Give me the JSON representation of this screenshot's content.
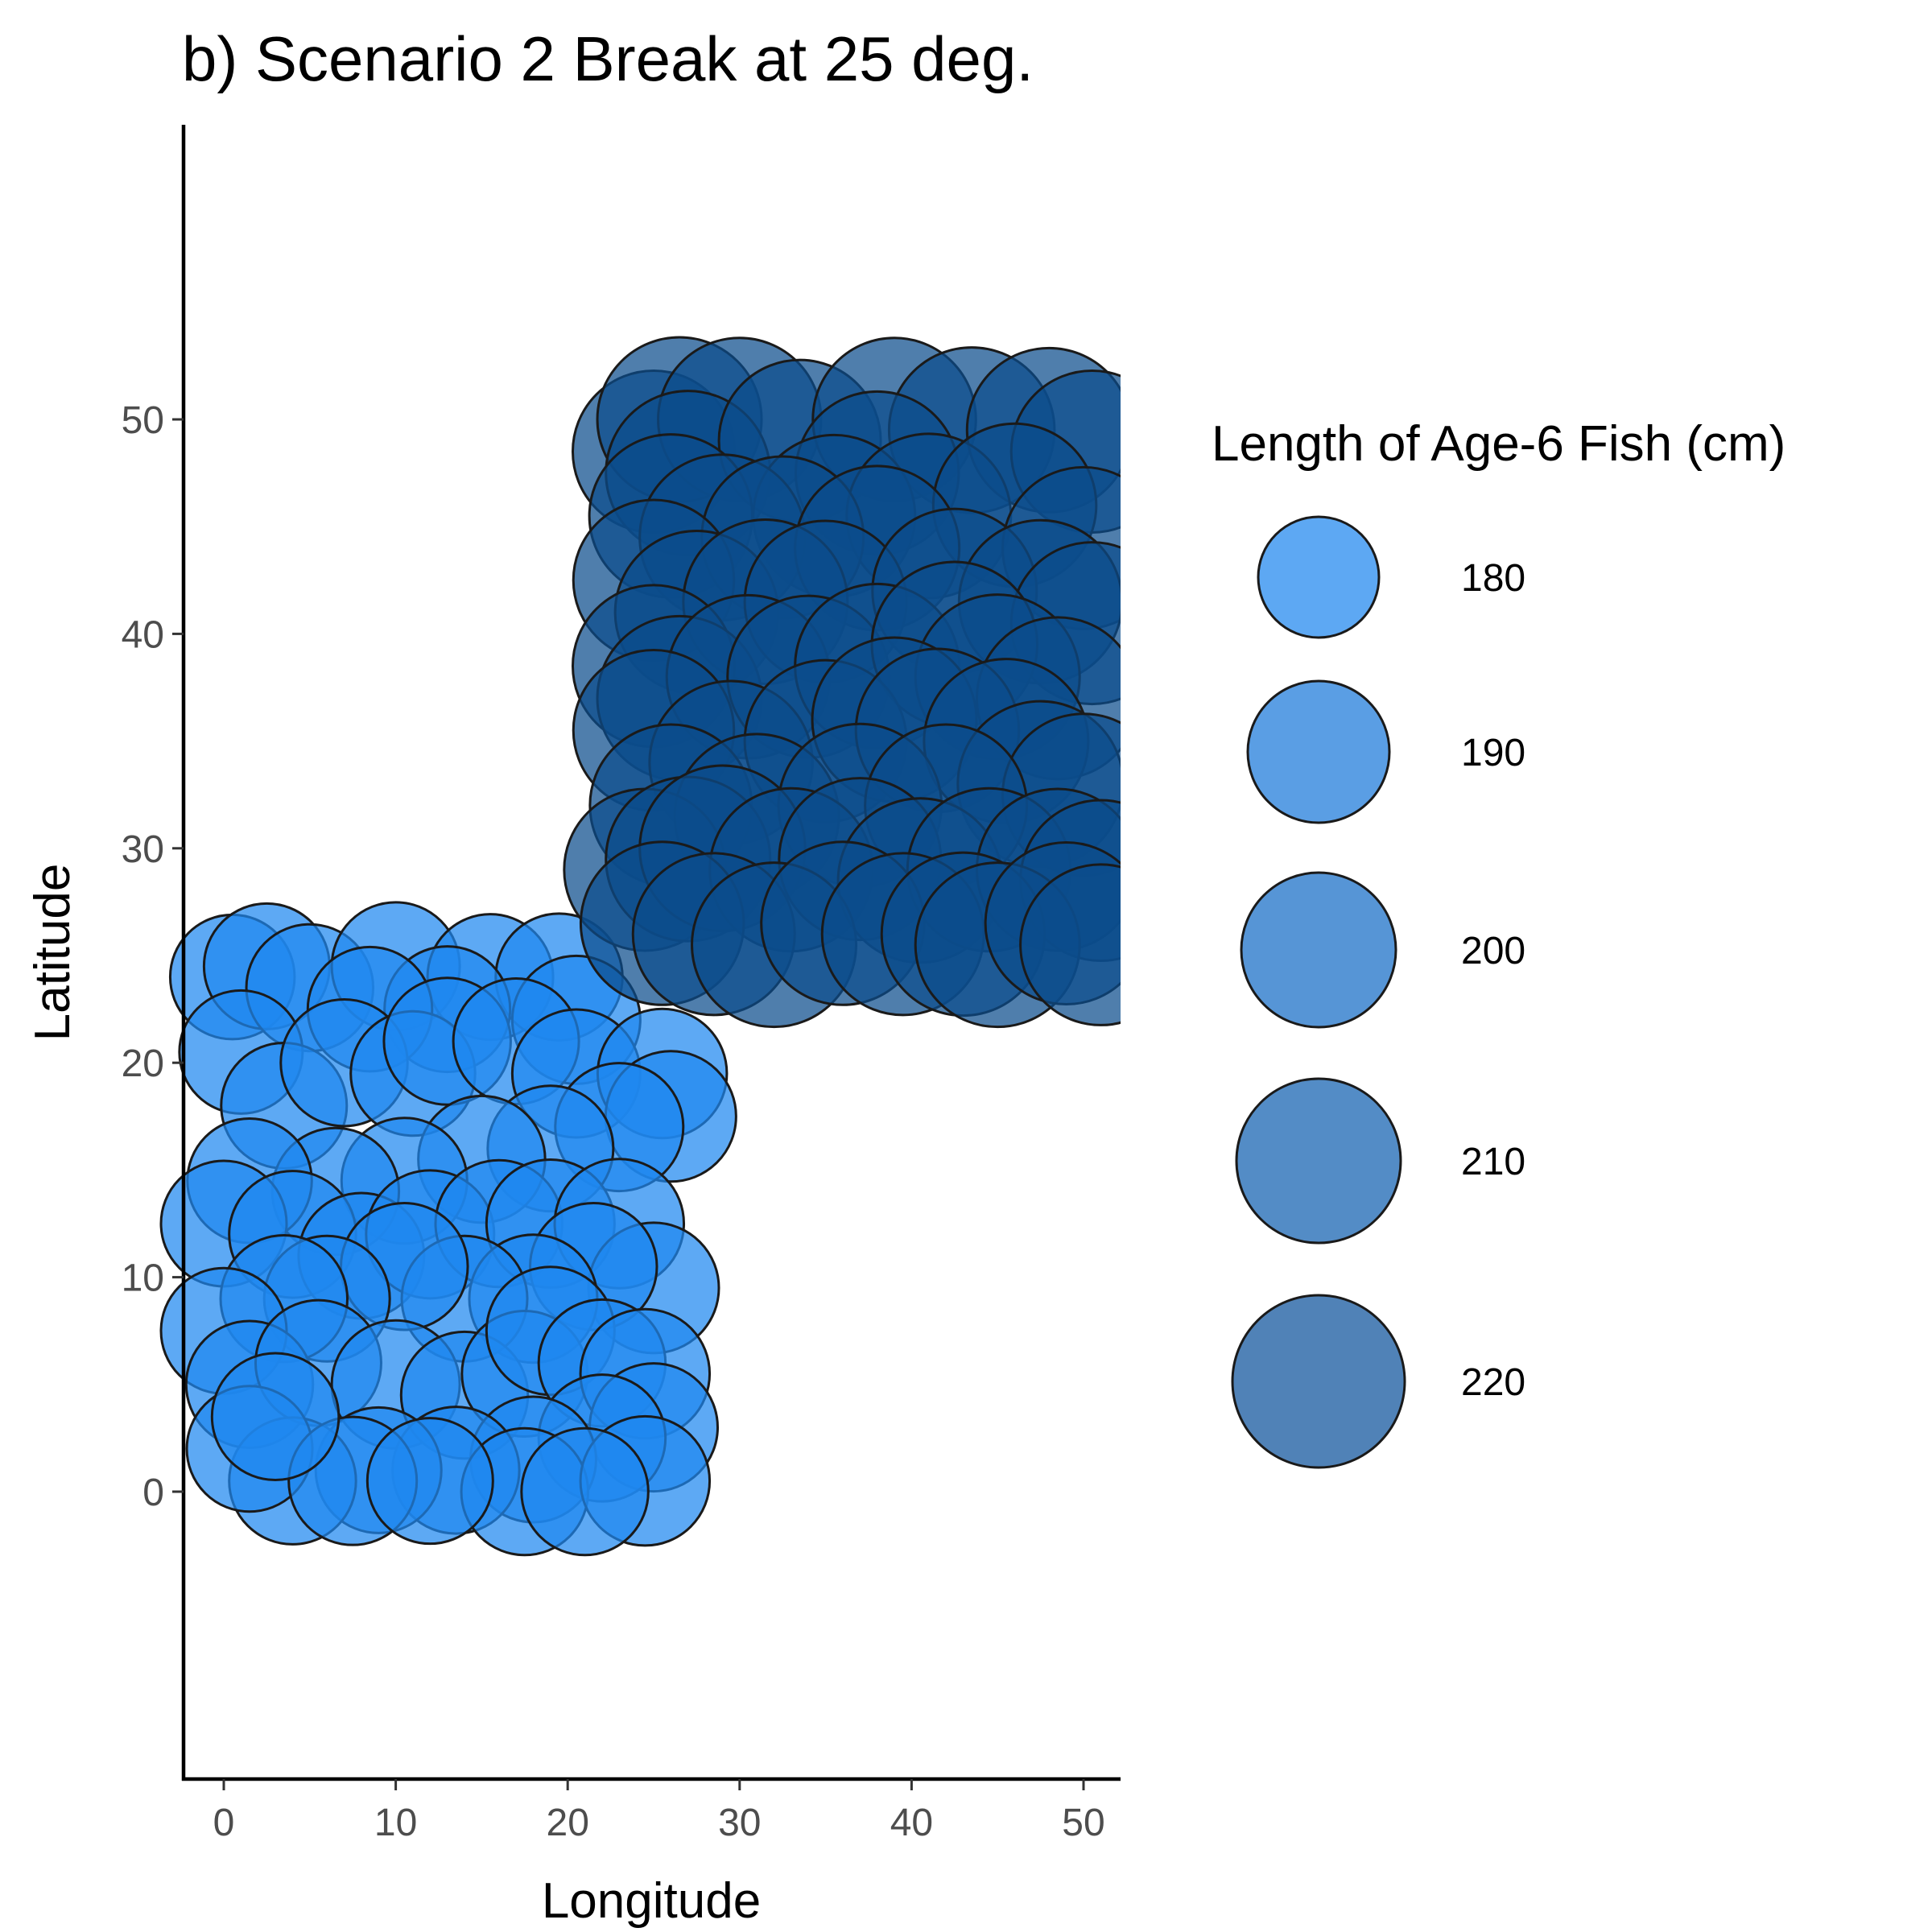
{
  "chart_data": {
    "type": "scatter",
    "title": "b) Scenario 2 Break at 25 deg.",
    "xlabel": "Longitude",
    "ylabel": "Latitude",
    "xlim": [
      -2.4,
      52
    ],
    "ylim": [
      -13,
      56
    ],
    "xticks": [
      0,
      10,
      20,
      30,
      40,
      50
    ],
    "yticks": [
      0,
      10,
      20,
      30,
      40,
      50
    ],
    "grid": false,
    "legend_placement": "right",
    "legend": {
      "title": "Length of Age-6 Fish (cm)",
      "entries": [
        {
          "label": "180",
          "value": 180
        },
        {
          "label": "190",
          "value": 190
        },
        {
          "label": "200",
          "value": 200
        },
        {
          "label": "210",
          "value": 210
        },
        {
          "label": "220",
          "value": 220
        }
      ]
    },
    "colors": {
      "low": "#1e88f0",
      "high": "#0b4c8c",
      "outline": "#1a1a1a"
    },
    "series": [
      {
        "region": "south",
        "points": [
          {
            "x": 0.5,
            "y": 24,
            "size": 183
          },
          {
            "x": 2.5,
            "y": 24.5,
            "size": 184
          },
          {
            "x": 5,
            "y": 23.5,
            "size": 185
          },
          {
            "x": 10,
            "y": 24.5,
            "size": 186
          },
          {
            "x": 15.5,
            "y": 24,
            "size": 184
          },
          {
            "x": 19.5,
            "y": 24,
            "size": 185
          },
          {
            "x": 20.5,
            "y": 22,
            "size": 186
          },
          {
            "x": 13,
            "y": 22.5,
            "size": 184
          },
          {
            "x": 8.5,
            "y": 22.5,
            "size": 183
          },
          {
            "x": 1,
            "y": 20.5,
            "size": 182
          },
          {
            "x": 3.5,
            "y": 18,
            "size": 184
          },
          {
            "x": 7,
            "y": 20,
            "size": 185
          },
          {
            "x": 11,
            "y": 19.5,
            "size": 183
          },
          {
            "x": 13,
            "y": 21,
            "size": 185
          },
          {
            "x": 17,
            "y": 21,
            "size": 184
          },
          {
            "x": 20.5,
            "y": 19.5,
            "size": 186
          },
          {
            "x": 25.5,
            "y": 19.5,
            "size": 187
          },
          {
            "x": 26,
            "y": 17.5,
            "size": 188
          },
          {
            "x": 23,
            "y": 17,
            "size": 186
          },
          {
            "x": 19,
            "y": 16,
            "size": 184
          },
          {
            "x": 15,
            "y": 15.5,
            "size": 185
          },
          {
            "x": 10.5,
            "y": 14.5,
            "size": 184
          },
          {
            "x": 6.5,
            "y": 14,
            "size": 185
          },
          {
            "x": 1.5,
            "y": 14.5,
            "size": 183
          },
          {
            "x": 0,
            "y": 12.5,
            "size": 184
          },
          {
            "x": 4,
            "y": 12,
            "size": 185
          },
          {
            "x": 8,
            "y": 11,
            "size": 184
          },
          {
            "x": 12,
            "y": 12,
            "size": 186
          },
          {
            "x": 16,
            "y": 12.5,
            "size": 185
          },
          {
            "x": 19,
            "y": 12.5,
            "size": 186
          },
          {
            "x": 23,
            "y": 12.5,
            "size": 187
          },
          {
            "x": 25,
            "y": 9.5,
            "size": 188
          },
          {
            "x": 21.5,
            "y": 10.5,
            "size": 185
          },
          {
            "x": 18,
            "y": 9,
            "size": 186
          },
          {
            "x": 14,
            "y": 9,
            "size": 184
          },
          {
            "x": 10.5,
            "y": 10.5,
            "size": 185
          },
          {
            "x": 6,
            "y": 9,
            "size": 184
          },
          {
            "x": 3.5,
            "y": 9,
            "size": 185
          },
          {
            "x": 0,
            "y": 7.5,
            "size": 184
          },
          {
            "x": 1.5,
            "y": 5,
            "size": 185
          },
          {
            "x": 5.5,
            "y": 6,
            "size": 184
          },
          {
            "x": 10,
            "y": 5,
            "size": 186
          },
          {
            "x": 14,
            "y": 4.5,
            "size": 185
          },
          {
            "x": 17.5,
            "y": 5.5,
            "size": 184
          },
          {
            "x": 19,
            "y": 7.5,
            "size": 186
          },
          {
            "x": 22,
            "y": 6,
            "size": 185
          },
          {
            "x": 24.5,
            "y": 5.5,
            "size": 187
          },
          {
            "x": 25,
            "y": 3,
            "size": 186
          },
          {
            "x": 22,
            "y": 2.5,
            "size": 185
          },
          {
            "x": 18,
            "y": 1.5,
            "size": 184
          },
          {
            "x": 13.5,
            "y": 1,
            "size": 185
          },
          {
            "x": 9,
            "y": 1,
            "size": 184
          },
          {
            "x": 4,
            "y": 0.5,
            "size": 185
          },
          {
            "x": 1.5,
            "y": 2,
            "size": 184
          },
          {
            "x": 7.5,
            "y": 0.5,
            "size": 186
          },
          {
            "x": 17.5,
            "y": 0,
            "size": 185
          },
          {
            "x": 24.5,
            "y": 0.5,
            "size": 187
          },
          {
            "x": 21,
            "y": 0,
            "size": 185
          },
          {
            "x": 12,
            "y": 0.5,
            "size": 184
          },
          {
            "x": 3,
            "y": 3.5,
            "size": 185
          }
        ]
      },
      {
        "region": "north",
        "points": [
          {
            "x": 25,
            "y": 48.5,
            "size": 214
          },
          {
            "x": 26.5,
            "y": 50,
            "size": 216
          },
          {
            "x": 30,
            "y": 50,
            "size": 215
          },
          {
            "x": 27,
            "y": 47.5,
            "size": 216
          },
          {
            "x": 33.5,
            "y": 49,
            "size": 214
          },
          {
            "x": 39,
            "y": 50,
            "size": 215
          },
          {
            "x": 43.5,
            "y": 49.5,
            "size": 217
          },
          {
            "x": 48,
            "y": 49.5,
            "size": 216
          },
          {
            "x": 50.5,
            "y": 48.5,
            "size": 214
          },
          {
            "x": 38,
            "y": 47.5,
            "size": 215
          },
          {
            "x": 35.5,
            "y": 45.5,
            "size": 214
          },
          {
            "x": 41,
            "y": 45.5,
            "size": 216
          },
          {
            "x": 46,
            "y": 46,
            "size": 215
          },
          {
            "x": 26,
            "y": 45.5,
            "size": 215
          },
          {
            "x": 29,
            "y": 44.5,
            "size": 217
          },
          {
            "x": 32.5,
            "y": 44.5,
            "size": 214
          },
          {
            "x": 38,
            "y": 44,
            "size": 216
          },
          {
            "x": 50,
            "y": 44,
            "size": 214
          },
          {
            "x": 25,
            "y": 42.5,
            "size": 213
          },
          {
            "x": 27.5,
            "y": 41,
            "size": 215
          },
          {
            "x": 31.5,
            "y": 41.5,
            "size": 216
          },
          {
            "x": 35,
            "y": 41.5,
            "size": 214
          },
          {
            "x": 42.5,
            "y": 42,
            "size": 216
          },
          {
            "x": 47.5,
            "y": 41.5,
            "size": 215
          },
          {
            "x": 50.5,
            "y": 40.5,
            "size": 214
          },
          {
            "x": 25,
            "y": 38.5,
            "size": 214
          },
          {
            "x": 26.5,
            "y": 37,
            "size": 216
          },
          {
            "x": 30.5,
            "y": 38,
            "size": 215
          },
          {
            "x": 34,
            "y": 38,
            "size": 214
          },
          {
            "x": 38,
            "y": 38.5,
            "size": 216
          },
          {
            "x": 42.5,
            "y": 39.5,
            "size": 217
          },
          {
            "x": 45,
            "y": 38,
            "size": 216
          },
          {
            "x": 48.5,
            "y": 37,
            "size": 214
          },
          {
            "x": 25,
            "y": 35.5,
            "size": 213
          },
          {
            "x": 29.5,
            "y": 34,
            "size": 215
          },
          {
            "x": 35,
            "y": 35,
            "size": 214
          },
          {
            "x": 39,
            "y": 36,
            "size": 216
          },
          {
            "x": 41.5,
            "y": 35.5,
            "size": 215
          },
          {
            "x": 45.5,
            "y": 35,
            "size": 216
          },
          {
            "x": 47.5,
            "y": 33,
            "size": 217
          },
          {
            "x": 50,
            "y": 32.5,
            "size": 214
          },
          {
            "x": 26,
            "y": 32,
            "size": 214
          },
          {
            "x": 31,
            "y": 31.5,
            "size": 216
          },
          {
            "x": 37,
            "y": 32,
            "size": 215
          },
          {
            "x": 42,
            "y": 32,
            "size": 214
          },
          {
            "x": 24.5,
            "y": 29,
            "size": 214
          },
          {
            "x": 27,
            "y": 29.5,
            "size": 216
          },
          {
            "x": 29,
            "y": 30,
            "size": 217
          },
          {
            "x": 33,
            "y": 29,
            "size": 215
          },
          {
            "x": 37,
            "y": 29.5,
            "size": 214
          },
          {
            "x": 40.5,
            "y": 28.5,
            "size": 216
          },
          {
            "x": 44.5,
            "y": 29,
            "size": 215
          },
          {
            "x": 48.5,
            "y": 29,
            "size": 214
          },
          {
            "x": 51,
            "y": 28.5,
            "size": 213
          },
          {
            "x": 25.5,
            "y": 26.5,
            "size": 215
          },
          {
            "x": 28.5,
            "y": 26,
            "size": 214
          },
          {
            "x": 32,
            "y": 25.5,
            "size": 216
          },
          {
            "x": 36,
            "y": 26.5,
            "size": 215
          },
          {
            "x": 39.5,
            "y": 26,
            "size": 214
          },
          {
            "x": 43,
            "y": 26,
            "size": 215
          },
          {
            "x": 45,
            "y": 25.5,
            "size": 216
          },
          {
            "x": 49,
            "y": 26.5,
            "size": 214
          },
          {
            "x": 51,
            "y": 25.5,
            "size": 213
          }
        ]
      }
    ]
  }
}
